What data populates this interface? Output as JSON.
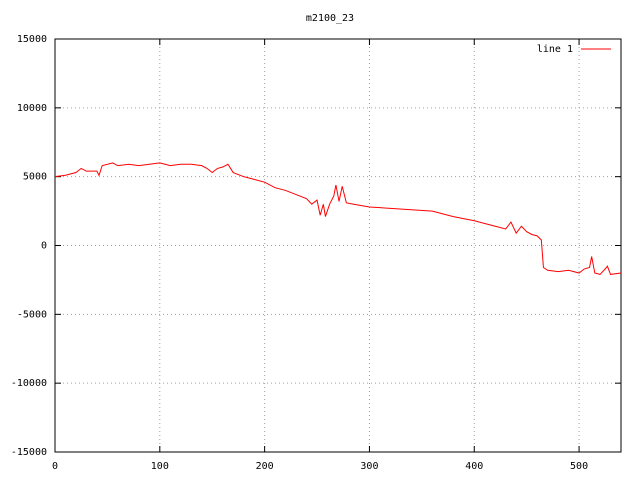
{
  "chart_data": {
    "type": "line",
    "title": "m2100_23",
    "series": [
      {
        "name": "line 1",
        "color": "#ff0000",
        "x": [
          0,
          10,
          20,
          25,
          30,
          40,
          42,
          45,
          55,
          60,
          70,
          80,
          90,
          100,
          110,
          120,
          130,
          140,
          145,
          150,
          155,
          160,
          165,
          170,
          180,
          190,
          200,
          210,
          220,
          230,
          240,
          245,
          250,
          253,
          256,
          258,
          262,
          266,
          268,
          271,
          274,
          278,
          285,
          300,
          320,
          340,
          360,
          380,
          400,
          420,
          430,
          435,
          440,
          445,
          450,
          455,
          460,
          464,
          466,
          470,
          480,
          490,
          500,
          505,
          510,
          512,
          515,
          520,
          525,
          527,
          530,
          540
        ],
        "values": [
          5000,
          5100,
          5300,
          5600,
          5400,
          5400,
          5100,
          5800,
          6000,
          5800,
          5900,
          5800,
          5900,
          6000,
          5800,
          5900,
          5900,
          5800,
          5600,
          5300,
          5600,
          5700,
          5900,
          5300,
          5000,
          4800,
          4600,
          4200,
          4000,
          3700,
          3400,
          3000,
          3300,
          2200,
          3000,
          2100,
          3000,
          3600,
          4400,
          3200,
          4300,
          3100,
          3000,
          2800,
          2700,
          2600,
          2500,
          2100,
          1800,
          1400,
          1200,
          1700,
          900,
          1400,
          1000,
          800,
          700,
          400,
          -1600,
          -1800,
          -1900,
          -1800,
          -2000,
          -1700,
          -1600,
          -800,
          -2000,
          -2100,
          -1700,
          -1500,
          -2100,
          -2000
        ]
      }
    ],
    "xlim": [
      0,
      540
    ],
    "xticks": [
      0,
      100,
      200,
      300,
      400,
      500
    ],
    "ylim": [
      -15000,
      15000
    ],
    "yticks": [
      -15000,
      -10000,
      -5000,
      0,
      5000,
      10000,
      15000
    ],
    "grid": true,
    "legend": "top-right"
  }
}
